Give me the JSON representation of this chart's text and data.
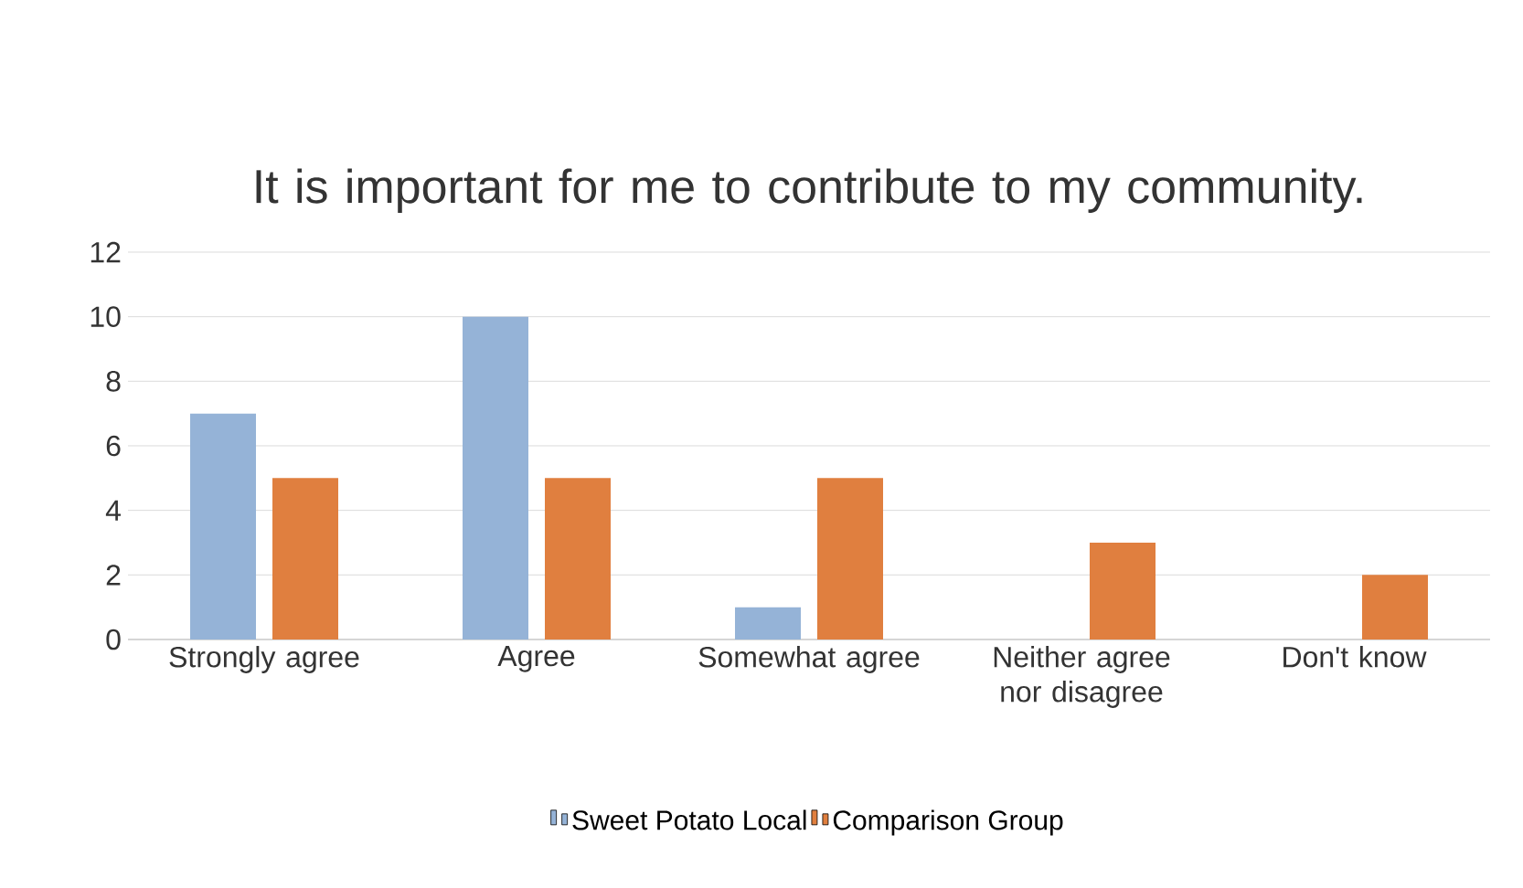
{
  "chart_data": {
    "type": "bar",
    "title": "It is important for me to contribute to my community.",
    "categories": [
      "Strongly agree",
      "Agree",
      "Somewhat agree",
      "Neither agree nor disagree",
      "Don't know"
    ],
    "series": [
      {
        "name": "Sweet Potato Local",
        "color": "#95b3d7",
        "values": [
          7,
          10,
          1,
          0,
          0
        ]
      },
      {
        "name": "Comparison Group",
        "color": "#e07f3f",
        "values": [
          5,
          5,
          5,
          3,
          2
        ]
      }
    ],
    "ylim": [
      0,
      12
    ],
    "yticks": [
      0,
      2,
      4,
      6,
      8,
      10,
      12
    ],
    "grid": "y",
    "legend": "bottom"
  }
}
